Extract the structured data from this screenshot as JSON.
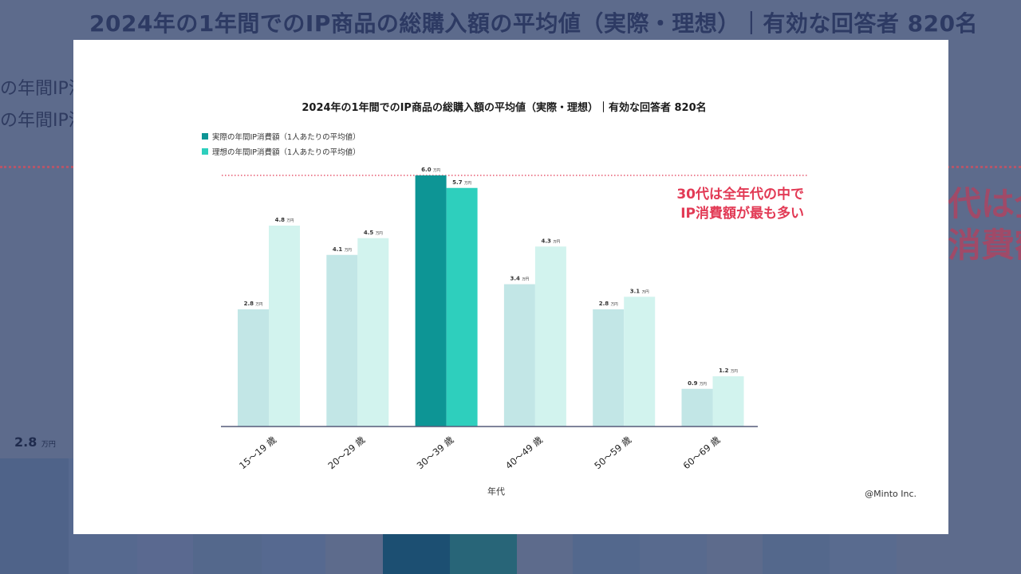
{
  "background": {
    "title": "2024年の1年間でのIP商品の総購入額の平均値（実際・理想）｜有効な回答者 820名",
    "legend_fragments": [
      "の年間IP消",
      "の年間IP消"
    ],
    "callout_fragments": [
      "代は全",
      "消費額"
    ],
    "value_label": "2.8",
    "value_unit": "万円"
  },
  "chart_data": {
    "type": "bar",
    "title": "2024年の1年間でのIP商品の総購入額の平均値（実際・理想）｜有効な回答者 820名",
    "xlabel": "年代",
    "ylabel": "",
    "unit": "万円",
    "categories": [
      "15～19 歳",
      "20～29 歳",
      "30～39 歳",
      "40～49 歳",
      "50～59 歳",
      "60～69 歳"
    ],
    "series": [
      {
        "name": "実際の年間IP消費額（1人あたりの平均値）",
        "values": [
          2.8,
          4.1,
          6.0,
          3.4,
          2.8,
          0.9
        ],
        "color": "#c2e6e6",
        "highlight_color": "#0d9595"
      },
      {
        "name": "理想の年間IP消費額（1人あたりの平均値）",
        "values": [
          4.8,
          4.5,
          5.7,
          4.3,
          3.1,
          1.2
        ],
        "color": "#d2f3ee",
        "highlight_color": "#2ecfbd"
      }
    ],
    "legend_colors": [
      "#0d9595",
      "#2ecfbd"
    ],
    "highlight_category_index": 2,
    "ylim": [
      0,
      6.0
    ],
    "grid": false,
    "legend_position": "top-left",
    "reference_line": {
      "value": 6.0,
      "style": "dotted",
      "color": "#e23a55"
    },
    "annotation": [
      "30代は全年代の中で",
      "IP消費額が最も多い"
    ],
    "credit": "@Minto Inc."
  }
}
